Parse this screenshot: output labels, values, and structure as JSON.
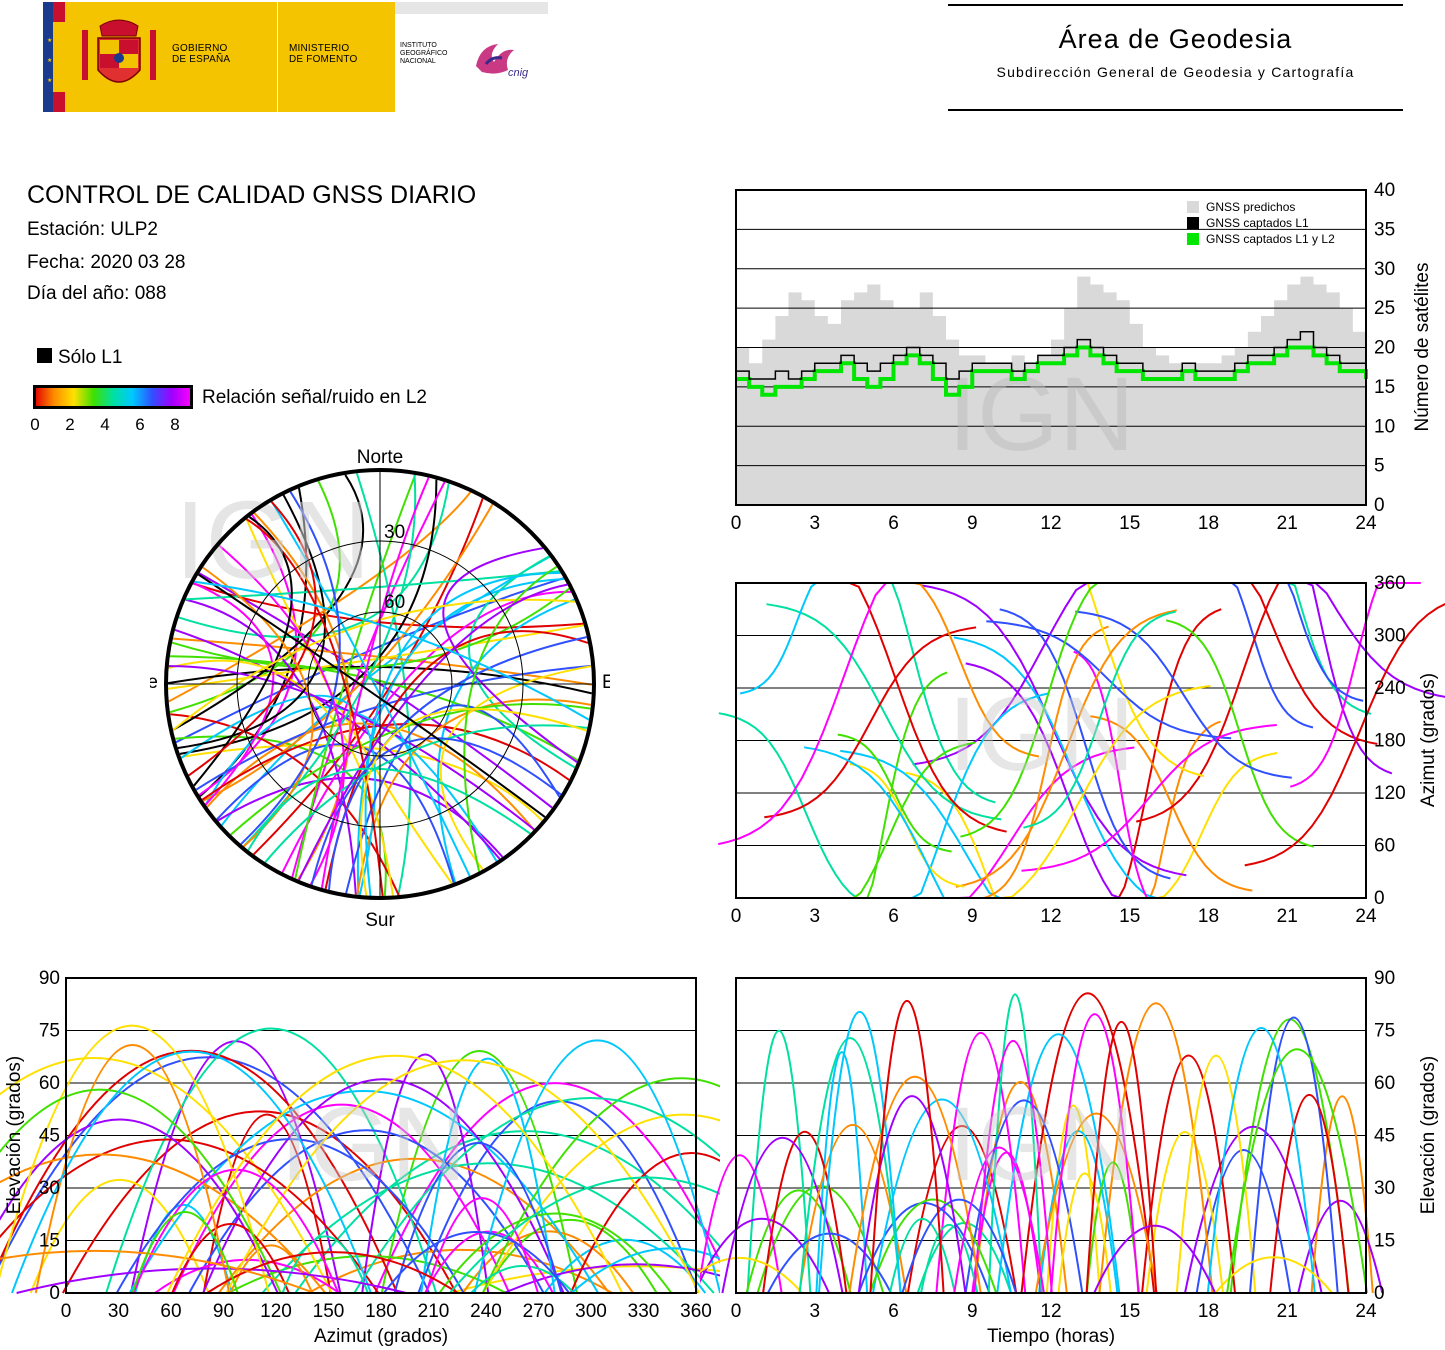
{
  "header": {
    "gov_line1": "GOBIERNO",
    "gov_line2": "DE ESPAÑA",
    "min_line1": "MINISTERIO",
    "min_line2": "DE FOMENTO",
    "ign_line1": "INSTITUTO",
    "ign_line2": "GEOGRÁFICO",
    "ign_line3": "NACIONAL",
    "cnig_logo": "cnig",
    "area_title": "Área de Geodesia",
    "area_subtitle": "Subdirección General de Geodesia y Cartografía"
  },
  "info": {
    "title": "CONTROL DE CALIDAD GNSS DIARIO",
    "station": "Estación: ULP2",
    "date": "Fecha: 2020 03 28",
    "doy": "Día del año: 088"
  },
  "legend": {
    "l1_only": "Sólo L1",
    "snr_label": "Relación señal/ruido en L2",
    "scale_ticks": [
      "0",
      "2",
      "4",
      "6",
      "8"
    ],
    "snr_colors": [
      "#e00000",
      "#ff8c00",
      "#ffe000",
      "#40e000",
      "#00e0a0",
      "#00c8ff",
      "#3050ff",
      "#a000ff",
      "#ff00ff"
    ]
  },
  "watermark": "IGN",
  "chart_data": [
    {
      "id": "satellite-count",
      "type": "area",
      "x_ticks": [
        "0",
        "3",
        "6",
        "9",
        "12",
        "15",
        "18",
        "21",
        "24"
      ],
      "y_ticks": [
        "0",
        "5",
        "10",
        "15",
        "20",
        "25",
        "30",
        "35",
        "40"
      ],
      "ylabel": "Número de satélites",
      "xlim": [
        0,
        24
      ],
      "ylim": [
        0,
        40
      ],
      "grid": "horizontal",
      "legend_position": "top-right",
      "x": [
        0,
        0.5,
        1,
        1.5,
        2,
        2.5,
        3,
        3.5,
        4,
        4.5,
        5,
        5.5,
        6,
        6.5,
        7,
        7.5,
        8,
        8.5,
        9,
        9.5,
        10,
        10.5,
        11,
        11.5,
        12,
        12.5,
        13,
        13.5,
        14,
        14.5,
        15,
        15.5,
        16,
        16.5,
        17,
        17.5,
        18,
        18.5,
        19,
        19.5,
        20,
        20.5,
        21,
        21.5,
        22,
        22.5,
        23,
        23.5,
        24
      ],
      "series": [
        {
          "name": "GNSS predichos",
          "color": "#d9d9d9",
          "values": [
            20,
            18,
            21,
            24,
            27,
            26,
            24,
            23,
            26,
            27,
            28,
            26,
            25,
            25,
            27,
            24,
            21,
            19,
            19,
            18,
            18,
            19,
            18,
            19,
            21,
            25,
            29,
            28,
            27,
            26,
            23,
            20,
            19,
            18,
            18,
            18,
            18,
            19,
            20,
            22,
            24,
            26,
            28,
            29,
            28,
            27,
            25,
            22,
            20
          ]
        },
        {
          "name": "GNSS captados L1",
          "color": "#000000",
          "values": [
            17,
            16,
            16,
            17,
            16,
            17,
            18,
            18,
            19,
            18,
            17,
            18,
            19,
            20,
            19,
            18,
            16,
            17,
            18,
            18,
            18,
            17,
            18,
            19,
            19,
            20,
            21,
            20,
            19,
            18,
            18,
            17,
            17,
            17,
            18,
            17,
            17,
            17,
            18,
            19,
            19,
            20,
            21,
            22,
            20,
            19,
            18,
            18,
            17
          ]
        },
        {
          "name": "GNSS captados L1 y L2",
          "color": "#00e600",
          "values": [
            16,
            15,
            14,
            15,
            15,
            16,
            17,
            17,
            18,
            16,
            15,
            16,
            18,
            19,
            18,
            16,
            14,
            15,
            17,
            17,
            17,
            16,
            17,
            18,
            18,
            19,
            20,
            19,
            18,
            17,
            17,
            16,
            16,
            16,
            17,
            16,
            16,
            16,
            17,
            18,
            18,
            19,
            20,
            20,
            19,
            18,
            17,
            17,
            16
          ]
        }
      ]
    },
    {
      "id": "azimuth-vs-time",
      "type": "scatter",
      "x_ticks": [
        "0",
        "3",
        "6",
        "9",
        "12",
        "15",
        "18",
        "21",
        "24"
      ],
      "y_ticks": [
        "0",
        "60",
        "120",
        "180",
        "240",
        "300",
        "360"
      ],
      "ylabel": "Azimut (grados)",
      "xlim": [
        0,
        24
      ],
      "ylim": [
        0,
        360
      ],
      "grid": "horizontal"
    },
    {
      "id": "elevation-vs-azimuth",
      "type": "scatter",
      "x_ticks": [
        "0",
        "30",
        "60",
        "90",
        "120",
        "150",
        "180",
        "210",
        "240",
        "270",
        "300",
        "330",
        "360"
      ],
      "y_ticks": [
        "0",
        "15",
        "30",
        "45",
        "60",
        "75",
        "90"
      ],
      "xlabel": "Azimut (grados)",
      "ylabel": "Elevación (grados)",
      "xlim": [
        0,
        360
      ],
      "ylim": [
        0,
        90
      ],
      "grid": "horizontal"
    },
    {
      "id": "elevation-vs-time",
      "type": "line",
      "x_ticks": [
        "0",
        "3",
        "6",
        "9",
        "12",
        "15",
        "18",
        "21",
        "24"
      ],
      "y_ticks": [
        "0",
        "15",
        "30",
        "45",
        "60",
        "75",
        "90"
      ],
      "xlabel": "Tiempo (horas)",
      "ylabel": "Elevación (grados)",
      "xlim": [
        0,
        24
      ],
      "ylim": [
        0,
        90
      ],
      "grid": "horizontal"
    },
    {
      "id": "skyplot",
      "type": "scatter",
      "labels": {
        "north": "Norte",
        "south": "Sur",
        "east": "Este",
        "west": "Oeste"
      },
      "ring_labels": [
        "30",
        "60"
      ]
    }
  ]
}
